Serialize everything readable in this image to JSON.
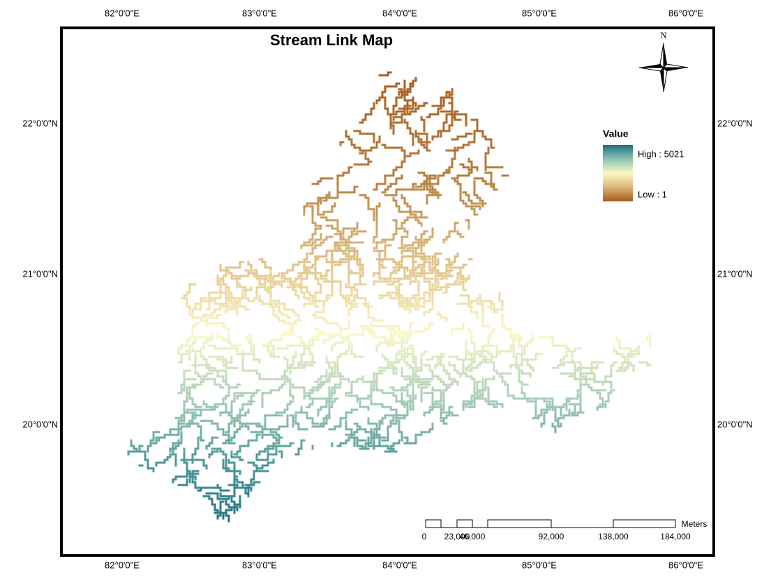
{
  "title": "Stream Link Map",
  "north_label": "N",
  "graticule": {
    "top": [
      "82°0'0\"E",
      "83°0'0\"E",
      "84°0'0\"E",
      "85°0'0\"E",
      "86°0'0\"E"
    ],
    "bottom": [
      "82°0'0\"E",
      "83°0'0\"E",
      "84°0'0\"E",
      "85°0'0\"E",
      "86°0'0\"E"
    ],
    "left": [
      "22°0'0\"N",
      "21°0'0\"N",
      "20°0'0\"N"
    ],
    "right": [
      "22°0'0\"N",
      "21°0'0\"N",
      "20°0'0\"N"
    ]
  },
  "legend": {
    "title": "Value",
    "high": "High : 5021",
    "low": "Low : 1"
  },
  "scale_bar": {
    "labels": [
      "0",
      "23,000",
      "46,000",
      "92,000",
      "138,000",
      "184,000"
    ],
    "unit": "Meters"
  }
}
